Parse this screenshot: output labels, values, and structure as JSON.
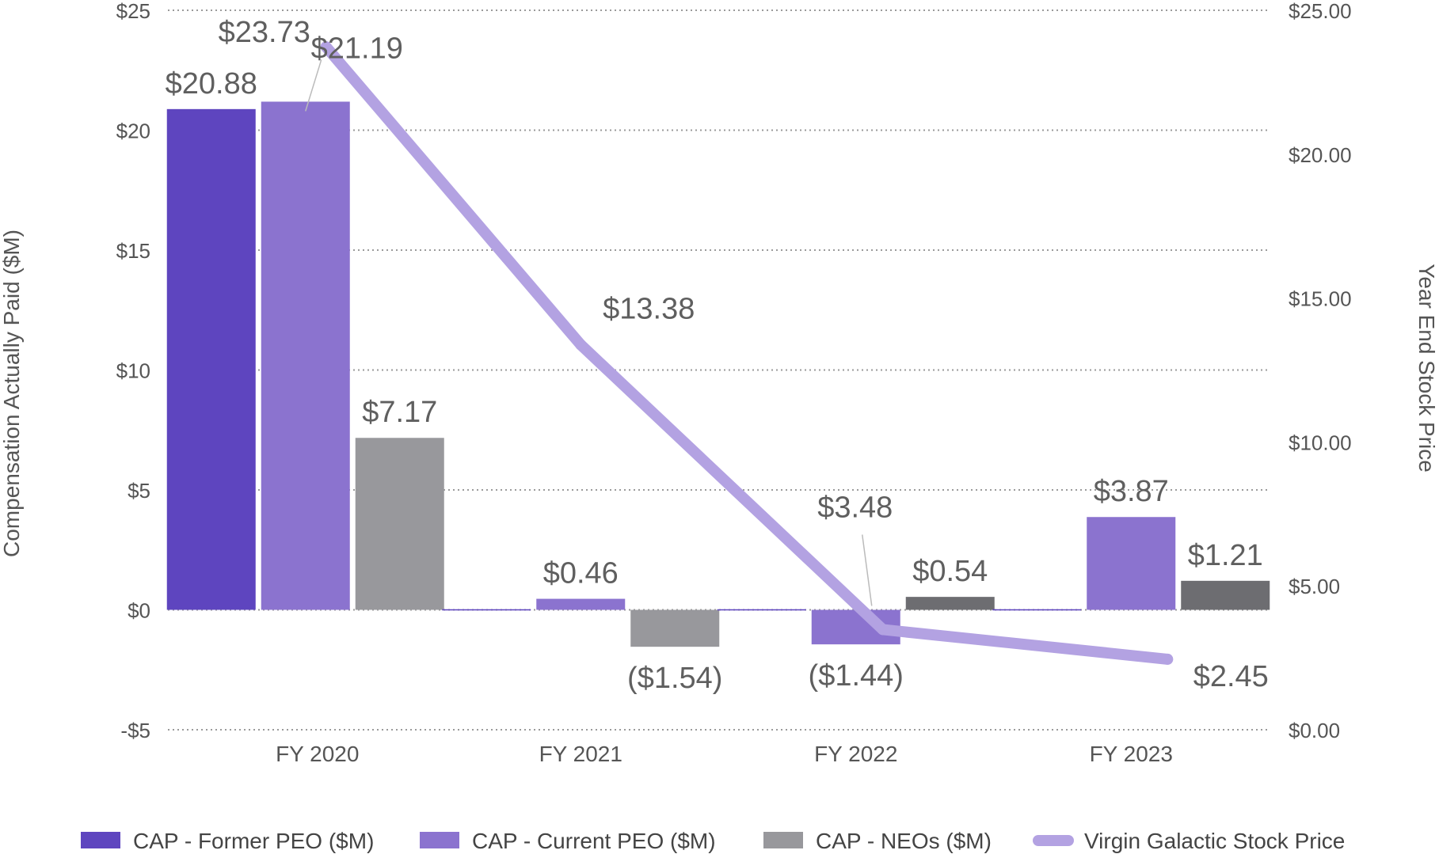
{
  "chart_data": {
    "type": "bar",
    "title": "",
    "categories": [
      "FY 2020",
      "FY 2021",
      "FY 2022",
      "FY 2023"
    ],
    "ylabel": "Compensation Actually Paid ($M)",
    "y2label": "Year End Stock Price",
    "ylim": [
      -5,
      25
    ],
    "y2lim": [
      0,
      25
    ],
    "yticks": [
      {
        "value": 25,
        "label": "$25"
      },
      {
        "value": 20,
        "label": "$20"
      },
      {
        "value": 15,
        "label": "$15"
      },
      {
        "value": 10,
        "label": "$10"
      },
      {
        "value": 5,
        "label": "$5"
      },
      {
        "value": 0,
        "label": "$0"
      },
      {
        "value": -5,
        "label": "-$5"
      }
    ],
    "y2ticks": [
      {
        "value": 25,
        "label": "$25.00"
      },
      {
        "value": 20,
        "label": "$20.00"
      },
      {
        "value": 15,
        "label": "$15.00"
      },
      {
        "value": 10,
        "label": "$10.00"
      },
      {
        "value": 5,
        "label": "$5.00"
      },
      {
        "value": 0,
        "label": "$0.00"
      }
    ],
    "grid": true,
    "legend_position": "bottom",
    "series": [
      {
        "name": "CAP - Former PEO ($M)",
        "type": "bar",
        "color": "#5e45bf",
        "values": [
          20.88,
          0,
          0,
          0
        ],
        "labels": [
          "$20.88",
          null,
          null,
          null
        ]
      },
      {
        "name": "CAP - Current PEO ($M)",
        "type": "bar",
        "color": "#8b73cf",
        "values": [
          21.19,
          0.46,
          -1.44,
          3.87
        ],
        "labels": [
          "$21.19",
          "$0.46",
          "($1.44)",
          "$3.87"
        ]
      },
      {
        "name": "CAP - NEOs ($M)",
        "type": "bar",
        "color": "#98989c",
        "colors": [
          "#98989c",
          "#98989c",
          "#6d6d71",
          "#6d6d71"
        ],
        "values": [
          7.17,
          -1.54,
          0.54,
          1.21
        ],
        "labels": [
          "$7.17",
          "($1.54)",
          "$0.54",
          "$1.21"
        ]
      },
      {
        "name": "Virgin Galactic Stock Price",
        "type": "line",
        "axis": "right",
        "color": "#b3a2e2",
        "values": [
          23.73,
          13.38,
          3.48,
          2.45
        ],
        "labels": [
          "$23.73",
          "$13.38",
          "$3.48",
          "$2.45"
        ]
      }
    ]
  }
}
